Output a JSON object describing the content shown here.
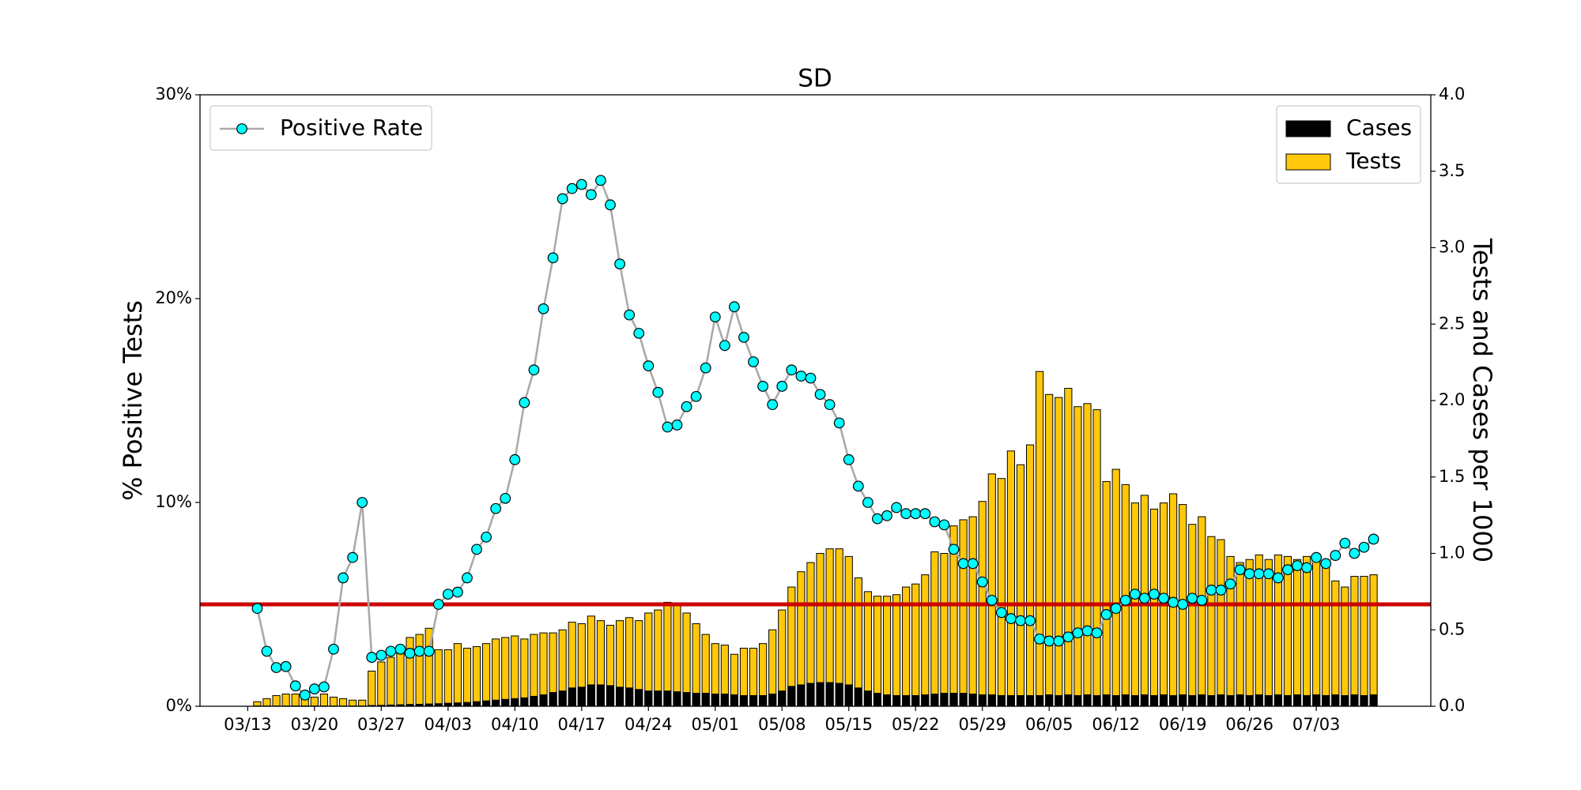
{
  "chart_data": {
    "type": "bar",
    "title": "SD",
    "ylabel": "% Positive Tests",
    "y2label": "Tests and Cases per 1000",
    "x": [
      "03/14",
      "03/15",
      "03/16",
      "03/17",
      "03/18",
      "03/19",
      "03/20",
      "03/21",
      "03/22",
      "03/23",
      "03/24",
      "03/25",
      "03/26",
      "03/27",
      "03/28",
      "03/29",
      "03/30",
      "03/31",
      "04/01",
      "04/02",
      "04/03",
      "04/04",
      "04/05",
      "04/06",
      "04/07",
      "04/08",
      "04/09",
      "04/10",
      "04/11",
      "04/12",
      "04/13",
      "04/14",
      "04/15",
      "04/16",
      "04/17",
      "04/18",
      "04/19",
      "04/20",
      "04/21",
      "04/22",
      "04/23",
      "04/24",
      "04/25",
      "04/26",
      "04/27",
      "04/28",
      "04/29",
      "04/30",
      "05/01",
      "05/02",
      "05/03",
      "05/04",
      "05/05",
      "05/06",
      "05/07",
      "05/08",
      "05/09",
      "05/10",
      "05/11",
      "05/12",
      "05/13",
      "05/14",
      "05/15",
      "05/16",
      "05/17",
      "05/18",
      "05/19",
      "05/20",
      "05/21",
      "05/22",
      "05/23",
      "05/24",
      "05/25",
      "05/26",
      "05/27",
      "05/28",
      "05/29",
      "05/30",
      "05/31",
      "06/01",
      "06/02",
      "06/03",
      "06/04",
      "06/05",
      "06/06",
      "06/07",
      "06/08",
      "06/09",
      "06/10",
      "06/11",
      "06/12",
      "06/13",
      "06/14",
      "06/15",
      "06/16",
      "06/17",
      "06/18",
      "06/19",
      "06/20",
      "06/21",
      "06/22",
      "06/23",
      "06/24",
      "06/25",
      "06/26",
      "06/27",
      "06/28",
      "06/29",
      "06/30",
      "07/01",
      "07/02",
      "07/03",
      "07/04",
      "07/05",
      "07/06",
      "07/07",
      "07/08",
      "07/09"
    ],
    "xlim": [
      "03/08",
      "07/15"
    ],
    "xticks": [
      "03/13",
      "03/20",
      "03/27",
      "04/03",
      "04/10",
      "04/17",
      "04/24",
      "05/01",
      "05/08",
      "05/15",
      "05/22",
      "05/29",
      "06/05",
      "06/12",
      "06/19",
      "06/26",
      "07/03"
    ],
    "ylim": [
      0,
      30
    ],
    "yticks": [
      {
        "value": 0,
        "label": "0%"
      },
      {
        "value": 10,
        "label": "10%"
      },
      {
        "value": 20,
        "label": "20%"
      },
      {
        "value": 30,
        "label": "30%"
      }
    ],
    "y2lim": [
      0,
      4
    ],
    "y2ticks": [
      {
        "value": 0,
        "label": "0.0"
      },
      0.5,
      {
        "value": 1,
        "label": "1.0"
      },
      1.5,
      {
        "value": 2,
        "label": "2.0"
      },
      2.5,
      {
        "value": 3,
        "label": "3.0"
      },
      3.5,
      {
        "value": 4,
        "label": "4.0"
      }
    ],
    "threshold": 5,
    "threshold_color": "#cc0000",
    "series": [
      {
        "name": "Positive Rate",
        "type": "line",
        "axis": "y",
        "color": "#aaaaaa",
        "marker_color": "#00ffff",
        "legend": "upper left",
        "values": [
          4.8,
          2.7,
          1.9,
          1.95,
          1.0,
          0.55,
          0.85,
          0.95,
          2.8,
          6.3,
          7.3,
          10.0,
          2.4,
          2.5,
          2.7,
          2.8,
          2.6,
          2.7,
          2.7,
          5.0,
          5.5,
          5.6,
          6.3,
          7.7,
          8.3,
          9.7,
          10.2,
          12.1,
          14.9,
          16.5,
          19.5,
          22.0,
          24.9,
          25.4,
          25.6,
          25.1,
          25.8,
          24.6,
          21.7,
          19.2,
          18.3,
          16.7,
          15.4,
          13.7,
          13.8,
          14.7,
          15.2,
          16.6,
          19.1,
          17.7,
          19.6,
          18.1,
          16.9,
          15.7,
          14.8,
          15.7,
          16.5,
          16.2,
          16.1,
          15.3,
          14.8,
          13.9,
          12.1,
          10.8,
          10.0,
          9.2,
          9.35,
          9.75,
          9.45,
          9.45,
          9.45,
          9.05,
          8.9,
          7.7,
          7.0,
          7.0,
          6.1,
          5.2,
          4.6,
          4.3,
          4.2,
          4.2,
          3.3,
          3.2,
          3.2,
          3.4,
          3.6,
          3.7,
          3.6,
          4.5,
          4.8,
          5.2,
          5.5,
          5.3,
          5.5,
          5.3,
          5.1,
          5.0,
          5.3,
          5.2,
          5.7,
          5.7,
          6.0,
          6.7,
          6.5,
          6.5,
          6.5,
          6.3,
          6.7,
          6.9,
          6.8,
          7.3,
          7.0,
          7.4,
          8.0,
          7.5,
          7.8,
          8.2
        ]
      },
      {
        "name": "Cases",
        "type": "bar",
        "axis": "y2",
        "color": "#000000",
        "legend": "upper right",
        "values": [
          0.002,
          0.002,
          0.002,
          0.002,
          0.002,
          0.002,
          0.002,
          0.002,
          0.002,
          0.002,
          0.002,
          0.002,
          0.005,
          0.006,
          0.008,
          0.01,
          0.012,
          0.013,
          0.015,
          0.017,
          0.02,
          0.022,
          0.025,
          0.03,
          0.035,
          0.04,
          0.045,
          0.05,
          0.055,
          0.065,
          0.075,
          0.09,
          0.1,
          0.12,
          0.125,
          0.14,
          0.14,
          0.135,
          0.125,
          0.12,
          0.11,
          0.1,
          0.1,
          0.1,
          0.095,
          0.09,
          0.085,
          0.085,
          0.08,
          0.08,
          0.075,
          0.07,
          0.07,
          0.07,
          0.08,
          0.1,
          0.13,
          0.14,
          0.15,
          0.155,
          0.155,
          0.15,
          0.14,
          0.12,
          0.1,
          0.085,
          0.075,
          0.07,
          0.07,
          0.07,
          0.075,
          0.08,
          0.085,
          0.085,
          0.085,
          0.08,
          0.075,
          0.075,
          0.07,
          0.07,
          0.07,
          0.07,
          0.07,
          0.075,
          0.07,
          0.075,
          0.07,
          0.075,
          0.07,
          0.075,
          0.07,
          0.075,
          0.07,
          0.075,
          0.07,
          0.075,
          0.07,
          0.075,
          0.07,
          0.075,
          0.07,
          0.075,
          0.07,
          0.075,
          0.07,
          0.075,
          0.07,
          0.075,
          0.07,
          0.075,
          0.07,
          0.075,
          0.07,
          0.075,
          0.07,
          0.075,
          0.07,
          0.075
        ]
      },
      {
        "name": "Tests",
        "type": "bar",
        "axis": "y2",
        "color": "#ffc80a",
        "legend": "upper right",
        "values": [
          0.03,
          0.05,
          0.07,
          0.08,
          0.08,
          0.08,
          0.06,
          0.08,
          0.06,
          0.05,
          0.04,
          0.04,
          0.23,
          0.29,
          0.32,
          0.38,
          0.45,
          0.47,
          0.51,
          0.37,
          0.37,
          0.41,
          0.38,
          0.39,
          0.41,
          0.44,
          0.45,
          0.46,
          0.44,
          0.47,
          0.48,
          0.48,
          0.5,
          0.55,
          0.54,
          0.59,
          0.56,
          0.53,
          0.56,
          0.58,
          0.56,
          0.61,
          0.63,
          0.68,
          0.66,
          0.61,
          0.54,
          0.47,
          0.41,
          0.4,
          0.34,
          0.38,
          0.38,
          0.41,
          0.5,
          0.63,
          0.78,
          0.88,
          0.94,
          1.0,
          1.03,
          1.03,
          0.98,
          0.84,
          0.75,
          0.72,
          0.72,
          0.73,
          0.78,
          0.8,
          0.86,
          1.01,
          1.0,
          1.18,
          1.22,
          1.24,
          1.34,
          1.52,
          1.49,
          1.67,
          1.58,
          1.71,
          2.19,
          2.04,
          2.02,
          2.08,
          1.96,
          1.98,
          1.94,
          1.47,
          1.55,
          1.45,
          1.33,
          1.38,
          1.29,
          1.33,
          1.39,
          1.32,
          1.19,
          1.24,
          1.11,
          1.09,
          0.98,
          0.94,
          0.96,
          0.99,
          0.96,
          0.99,
          0.98,
          0.96,
          0.98,
          0.98,
          0.94,
          0.82,
          0.78,
          0.85,
          0.85,
          0.86
        ]
      }
    ]
  }
}
